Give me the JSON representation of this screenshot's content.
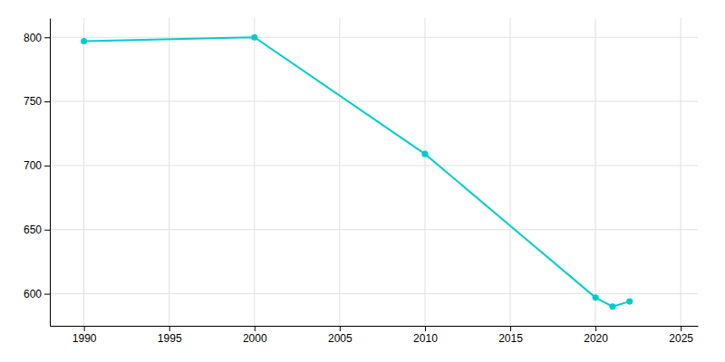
{
  "chart_data": {
    "type": "line",
    "x": [
      1990,
      2000,
      2010,
      2020,
      2021,
      2022
    ],
    "values": [
      797,
      800,
      709,
      597,
      590,
      594
    ],
    "color": "#00CCCC",
    "marker": "circle",
    "xlim": [
      1988,
      2026
    ],
    "ylim": [
      575,
      815
    ],
    "xticks": [
      1990,
      1995,
      2000,
      2005,
      2010,
      2015,
      2020,
      2025
    ],
    "yticks": [
      600,
      650,
      700,
      750,
      800
    ],
    "grid": true
  }
}
